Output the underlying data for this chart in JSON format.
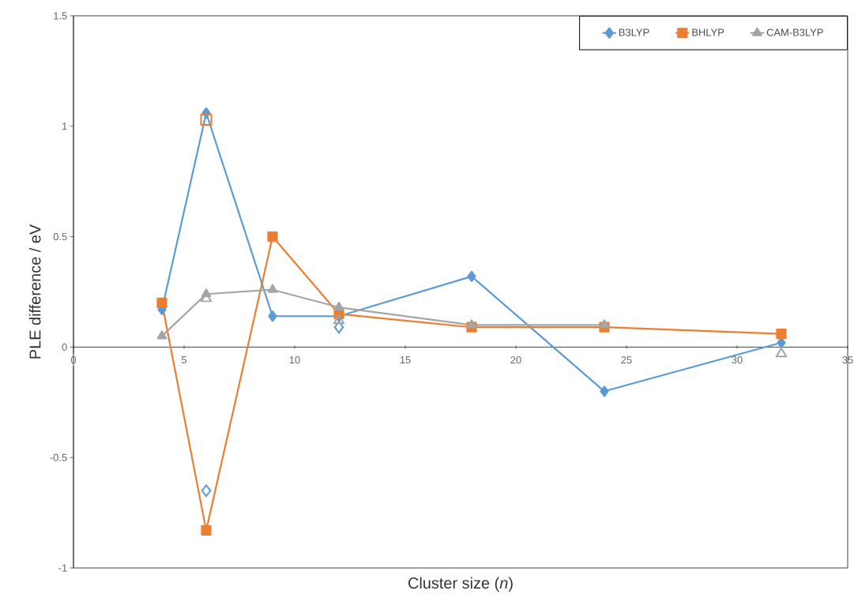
{
  "chart_data": {
    "type": "line",
    "xlabel": "Cluster size (*n*)",
    "ylabel": "PLE difference / eV",
    "x": [
      4,
      6,
      9,
      12,
      18,
      24,
      32
    ],
    "series": [
      {
        "name": "B3LYP",
        "color": "#5b9bd5",
        "marker": "diamond",
        "values": [
          0.17,
          1.06,
          0.14,
          0.14,
          0.32,
          -0.2,
          0.02
        ]
      },
      {
        "name": "BHLYP",
        "color": "#ed7d31",
        "marker": "square",
        "values": [
          0.2,
          -0.83,
          0.5,
          0.15,
          0.09,
          0.09,
          0.06
        ]
      },
      {
        "name": "CAM-B3LYP",
        "color": "#a5a5a5",
        "marker": "triangle",
        "values": [
          0.05,
          0.24,
          0.26,
          0.18,
          0.1,
          0.1,
          null
        ]
      },
      {
        "type": "scatter",
        "color": "#5b9bd5",
        "marker": "diamond",
        "x": [
          6,
          12
        ],
        "values": [
          -0.65,
          0.09
        ]
      },
      {
        "type": "scatter",
        "color": "#ed7d31",
        "marker": "square",
        "x": [
          6
        ],
        "values": [
          1.03
        ]
      },
      {
        "type": "scatter",
        "color": "#a5a5a5",
        "marker": "triangle",
        "x": [
          6,
          12,
          32
        ],
        "values": [
          0.22,
          0.12,
          -0.03
        ]
      }
    ],
    "xlim": [
      0,
      35
    ],
    "xticks": [
      0,
      5,
      10,
      15,
      20,
      25,
      30,
      35
    ],
    "ylim": [
      -1,
      1.5
    ],
    "yticks": [
      -1,
      -0.5,
      0,
      0.5,
      1,
      1.5
    ],
    "legend": "top right"
  }
}
